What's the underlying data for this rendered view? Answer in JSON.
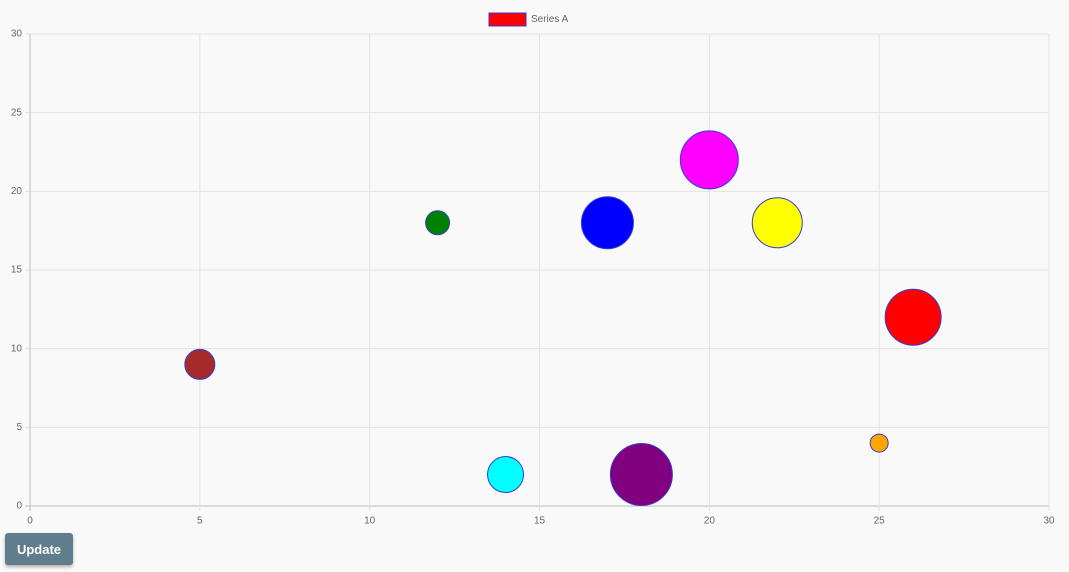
{
  "chart_data": {
    "type": "bubble",
    "series": [
      {
        "name": "Series A",
        "color": "#ff0000",
        "border_color": "#3a3ad0",
        "x": [
          5,
          12,
          14,
          17,
          18,
          20,
          22,
          25,
          26
        ],
        "y": [
          9,
          18,
          2,
          18,
          2,
          22,
          18,
          4,
          12
        ],
        "sizes": [
          15,
          12,
          18,
          26,
          31,
          29,
          25,
          9,
          28
        ],
        "point_colors": [
          "#a52a2a",
          "#008000",
          "#00ffff",
          "#0000ff",
          "#800080",
          "#ff00ff",
          "#ffff00",
          "#ffa500",
          "#ff0000"
        ]
      }
    ],
    "xlim": [
      0,
      30
    ],
    "xticks": [
      0,
      5,
      10,
      15,
      20,
      25,
      30
    ],
    "ylim": [
      0,
      30
    ],
    "yticks": [
      0,
      5,
      10,
      15,
      20,
      25,
      30
    ],
    "grid": true,
    "legend": "top"
  },
  "button": "Update"
}
